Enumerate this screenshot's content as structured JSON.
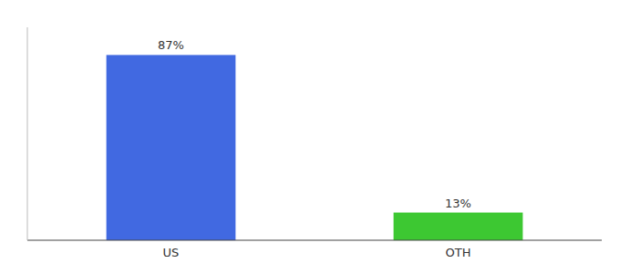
{
  "chart_data": {
    "type": "bar",
    "categories": [
      "US",
      "OTH"
    ],
    "values": [
      87,
      13
    ],
    "value_labels": [
      "87%",
      "13%"
    ],
    "colors": [
      "#4169e1",
      "#3dc832"
    ],
    "ylim": [
      0,
      100
    ],
    "data_labels": true,
    "tick_labels": "x",
    "grid": false
  }
}
